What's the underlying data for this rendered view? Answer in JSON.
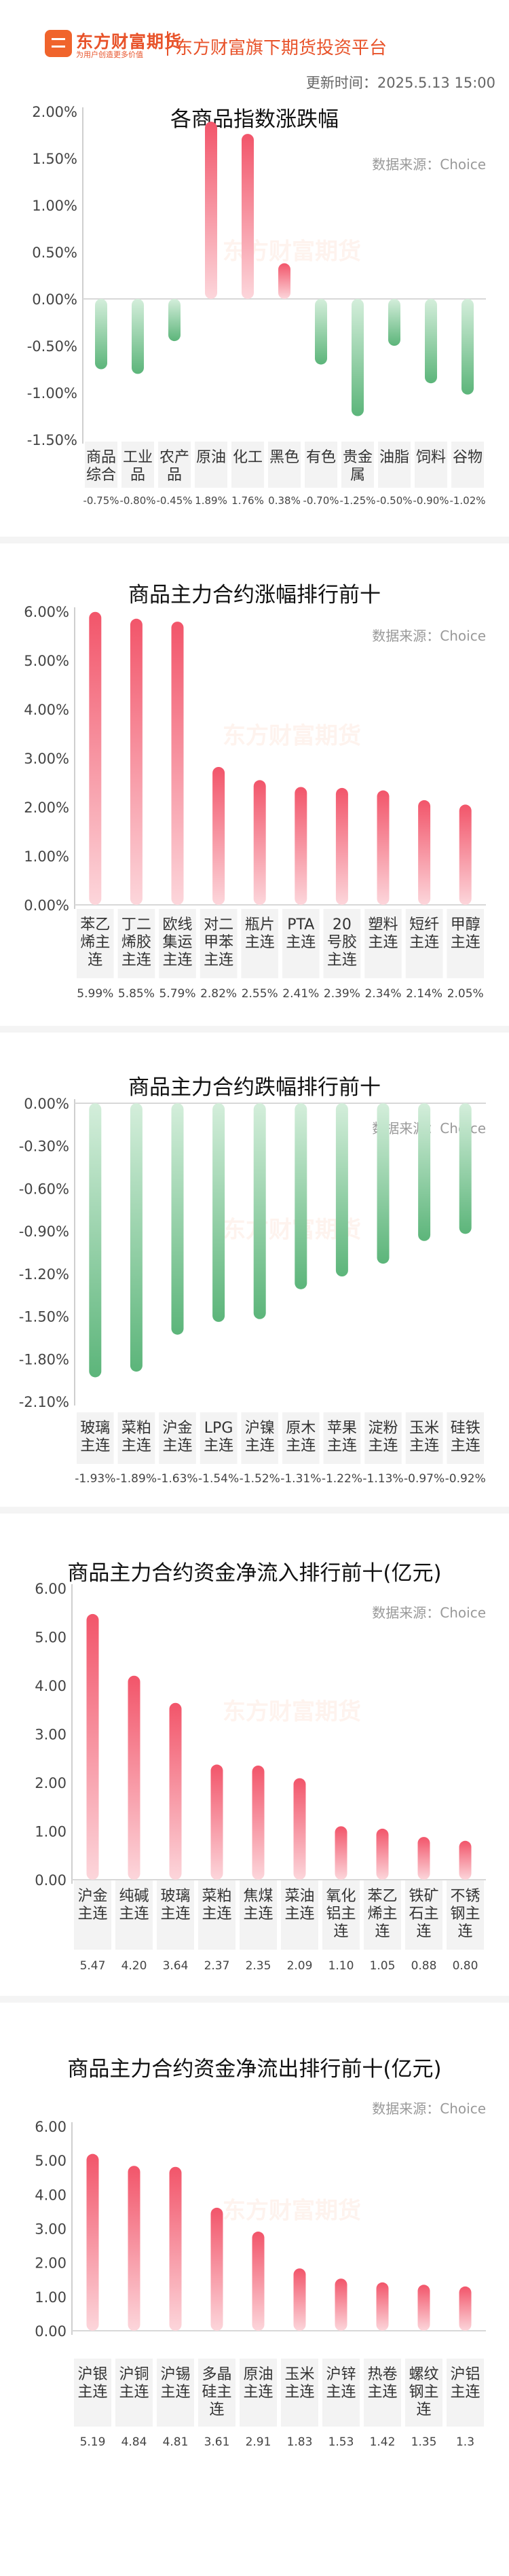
{
  "header": {
    "brand_name": "东方财富期货",
    "brand_slogan": "为用户创造更多价值",
    "platform": "东方财富旗下期货投资平台",
    "update_time": "更新时间：2025.5.13 15:00"
  },
  "watermark": "东方财富期货",
  "colors": {
    "up": "#f2556a",
    "down": "#5cb57a",
    "label_bg": "#f3f3f3"
  },
  "charts": [
    {
      "title": "各商品指数涨跌幅",
      "source": "数据来源：Choice",
      "chart_data": {
        "type": "bar",
        "categories": [
          "商品综合",
          "工业品",
          "农产品",
          "原油",
          "化工",
          "黑色",
          "有色",
          "贵金属",
          "油脂",
          "饲料",
          "谷物"
        ],
        "values": [
          -0.75,
          -0.8,
          -0.45,
          1.89,
          1.76,
          0.38,
          -0.7,
          -1.25,
          -0.5,
          -0.9,
          -1.02
        ],
        "value_labels": [
          "-0.75%",
          "-0.80%",
          "-0.45%",
          "1.89%",
          "1.76%",
          "0.38%",
          "-0.70%",
          "-1.25%",
          "-0.50%",
          "-0.90%",
          "-1.02%"
        ],
        "ticks": [
          "2.00%",
          "1.50%",
          "1.00%",
          "0.50%",
          "0.00%",
          "-0.50%",
          "-1.00%",
          "-1.50%"
        ],
        "ylim": [
          -1.5,
          2.0
        ]
      }
    },
    {
      "title": "商品主力合约涨幅排行前十",
      "source": "数据来源：Choice",
      "chart_data": {
        "type": "bar",
        "categories": [
          "苯乙烯主连",
          "丁二烯胶主连",
          "欧线集运主连",
          "对二甲苯主连",
          "瓶片主连",
          "PTA主连",
          "20号胶主连",
          "塑料主连",
          "短纤主连",
          "甲醇主连"
        ],
        "values": [
          5.99,
          5.85,
          5.79,
          2.82,
          2.55,
          2.41,
          2.39,
          2.34,
          2.14,
          2.05
        ],
        "value_labels": [
          "5.99%",
          "5.85%",
          "5.79%",
          "2.82%",
          "2.55%",
          "2.41%",
          "2.39%",
          "2.34%",
          "2.14%",
          "2.05%"
        ],
        "ticks": [
          "6.00%",
          "5.00%",
          "4.00%",
          "3.00%",
          "2.00%",
          "1.00%",
          "0.00%"
        ],
        "ylim": [
          0,
          6
        ]
      }
    },
    {
      "title": "商品主力合约跌幅排行前十",
      "source": "数据来源：Choice",
      "chart_data": {
        "type": "bar",
        "categories": [
          "玻璃主连",
          "菜粕主连",
          "沪金主连",
          "LPG主连",
          "沪镍主连",
          "原木主连",
          "苹果主连",
          "淀粉主连",
          "玉米主连",
          "硅铁主连"
        ],
        "values": [
          -1.93,
          -1.89,
          -1.63,
          -1.54,
          -1.52,
          -1.31,
          -1.22,
          -1.13,
          -0.97,
          -0.92
        ],
        "value_labels": [
          "-1.93%",
          "-1.89%",
          "-1.63%",
          "-1.54%",
          "-1.52%",
          "-1.31%",
          "-1.22%",
          "-1.13%",
          "-0.97%",
          "-0.92%"
        ],
        "ticks": [
          "0.00%",
          "-0.30%",
          "-0.60%",
          "-0.90%",
          "-1.20%",
          "-1.50%",
          "-1.80%",
          "-2.10%"
        ],
        "ylim": [
          -2.1,
          0
        ]
      }
    },
    {
      "title": "商品主力合约资金净流入排行前十(亿元)",
      "source": "数据来源：Choice",
      "chart_data": {
        "type": "bar",
        "categories": [
          "沪金主连",
          "纯碱主连",
          "玻璃主连",
          "菜粕主连",
          "焦煤主连",
          "菜油主连",
          "氧化铝主连",
          "苯乙烯主连",
          "铁矿石主连",
          "不锈钢主连"
        ],
        "values": [
          5.47,
          4.2,
          3.64,
          2.37,
          2.35,
          2.09,
          1.1,
          1.05,
          0.88,
          0.8
        ],
        "value_labels": [
          "5.47",
          "4.20",
          "3.64",
          "2.37",
          "2.35",
          "2.09",
          "1.10",
          "1.05",
          "0.88",
          "0.80"
        ],
        "ticks": [
          "6.00",
          "5.00",
          "4.00",
          "3.00",
          "2.00",
          "1.00",
          "0.00"
        ],
        "ylim": [
          0,
          6
        ]
      }
    },
    {
      "title": "商品主力合约资金净流出排行前十(亿元)",
      "source": "数据来源：Choice",
      "chart_data": {
        "type": "bar",
        "categories": [
          "沪银主连",
          "沪铜主连",
          "沪锡主连",
          "多晶硅主连",
          "原油主连",
          "玉米主连",
          "沪锌主连",
          "热卷主连",
          "螺纹钢主连",
          "沪铝主连"
        ],
        "values": [
          5.19,
          4.84,
          4.81,
          3.61,
          2.91,
          1.83,
          1.53,
          1.42,
          1.35,
          1.3
        ],
        "value_labels": [
          "5.19",
          "4.84",
          "4.81",
          "3.61",
          "2.91",
          "1.83",
          "1.53",
          "1.42",
          "1.35",
          "1.3"
        ],
        "ticks": [
          "6.00",
          "5.00",
          "4.00",
          "3.00",
          "2.00",
          "1.00",
          "0.00"
        ],
        "ylim": [
          0,
          6
        ]
      }
    }
  ]
}
